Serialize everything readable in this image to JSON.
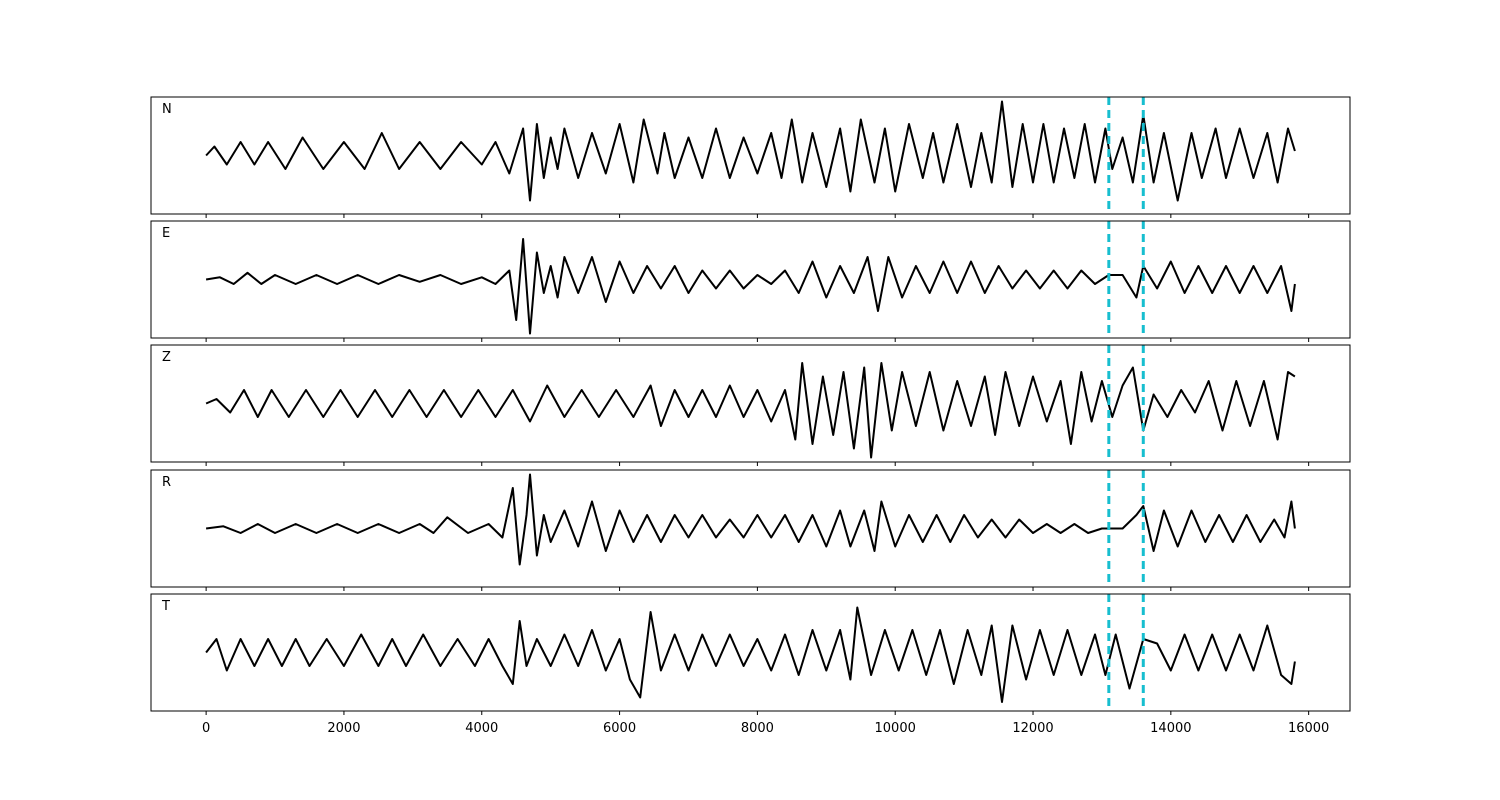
{
  "chart_data": {
    "type": "line",
    "title": "",
    "xlabel": "",
    "ylabel": "",
    "xlim": [
      -800,
      16600
    ],
    "x_ticks": [
      0,
      2000,
      4000,
      6000,
      8000,
      10000,
      12000,
      14000,
      16000
    ],
    "x_tick_labels": [
      "0",
      "2000",
      "4000",
      "6000",
      "8000",
      "10000",
      "12000",
      "14000",
      "16000"
    ],
    "y_ticks_visible": false,
    "grid": false,
    "trace_color": "#000000",
    "pick_color": "#17becf",
    "vertical_markers": [
      13100,
      13600
    ],
    "panels": [
      {
        "label": "N",
        "ylim": [
          -1.3,
          1.3
        ],
        "x": [
          0,
          120,
          300,
          500,
          700,
          900,
          1150,
          1400,
          1700,
          2000,
          2300,
          2550,
          2800,
          3100,
          3400,
          3700,
          4000,
          4200,
          4400,
          4500,
          4600,
          4700,
          4800,
          4900,
          5000,
          5100,
          5200,
          5400,
          5600,
          5800,
          6000,
          6200,
          6350,
          6550,
          6650,
          6800,
          7000,
          7200,
          7400,
          7600,
          7800,
          8000,
          8200,
          8350,
          8500,
          8650,
          8800,
          9000,
          9200,
          9350,
          9500,
          9700,
          9850,
          10000,
          10200,
          10400,
          10550,
          10700,
          10900,
          11100,
          11250,
          11400,
          11550,
          11700,
          11850,
          12000,
          12150,
          12300,
          12450,
          12600,
          12750,
          12900,
          13050,
          13150,
          13300,
          13450,
          13600,
          13750,
          13900,
          14100,
          14300,
          14450,
          14650,
          14800,
          15000,
          15200,
          15400,
          15550,
          15700,
          15800
        ],
        "y": [
          0.0,
          0.2,
          -0.2,
          0.3,
          -0.2,
          0.3,
          -0.3,
          0.4,
          -0.3,
          0.3,
          -0.3,
          0.5,
          -0.3,
          0.3,
          -0.3,
          0.3,
          -0.2,
          0.3,
          -0.4,
          0.1,
          0.6,
          -1.0,
          0.7,
          -0.5,
          0.4,
          -0.3,
          0.6,
          -0.5,
          0.5,
          -0.4,
          0.7,
          -0.6,
          0.8,
          -0.4,
          0.5,
          -0.5,
          0.4,
          -0.5,
          0.6,
          -0.5,
          0.4,
          -0.4,
          0.5,
          -0.5,
          0.8,
          -0.6,
          0.5,
          -0.7,
          0.6,
          -0.8,
          0.8,
          -0.6,
          0.6,
          -0.8,
          0.7,
          -0.5,
          0.5,
          -0.6,
          0.7,
          -0.7,
          0.5,
          -0.6,
          1.2,
          -0.7,
          0.7,
          -0.6,
          0.7,
          -0.6,
          0.6,
          -0.5,
          0.7,
          -0.6,
          0.6,
          -0.3,
          0.4,
          -0.6,
          0.9,
          -0.6,
          0.5,
          -1.0,
          0.5,
          -0.5,
          0.6,
          -0.5,
          0.6,
          -0.5,
          0.5,
          -0.6,
          0.6,
          0.1
        ]
      },
      {
        "label": "E",
        "ylim": [
          -1.3,
          1.3
        ],
        "x": [
          0,
          200,
          400,
          600,
          800,
          1000,
          1300,
          1600,
          1900,
          2200,
          2500,
          2800,
          3100,
          3400,
          3700,
          4000,
          4200,
          4400,
          4500,
          4600,
          4700,
          4800,
          4900,
          5000,
          5100,
          5200,
          5400,
          5600,
          5800,
          6000,
          6200,
          6400,
          6600,
          6800,
          7000,
          7200,
          7400,
          7600,
          7800,
          8000,
          8200,
          8400,
          8600,
          8800,
          9000,
          9200,
          9400,
          9600,
          9750,
          9900,
          10100,
          10300,
          10500,
          10700,
          10900,
          11100,
          11300,
          11500,
          11700,
          11900,
          12100,
          12300,
          12500,
          12700,
          12900,
          13100,
          13300,
          13500,
          13600,
          13800,
          14000,
          14200,
          14400,
          14600,
          14800,
          15000,
          15200,
          15400,
          15600,
          15750,
          15800
        ],
        "y": [
          0.0,
          0.05,
          -0.1,
          0.15,
          -0.1,
          0.1,
          -0.1,
          0.1,
          -0.1,
          0.1,
          -0.1,
          0.1,
          -0.05,
          0.1,
          -0.1,
          0.05,
          -0.1,
          0.2,
          -0.9,
          0.9,
          -1.2,
          0.6,
          -0.3,
          0.3,
          -0.4,
          0.5,
          -0.3,
          0.5,
          -0.5,
          0.4,
          -0.3,
          0.3,
          -0.2,
          0.3,
          -0.3,
          0.2,
          -0.2,
          0.2,
          -0.2,
          0.1,
          -0.1,
          0.2,
          -0.3,
          0.4,
          -0.4,
          0.3,
          -0.3,
          0.5,
          -0.7,
          0.5,
          -0.4,
          0.3,
          -0.3,
          0.4,
          -0.3,
          0.4,
          -0.3,
          0.3,
          -0.2,
          0.2,
          -0.2,
          0.2,
          -0.2,
          0.2,
          -0.1,
          0.1,
          0.1,
          -0.4,
          0.3,
          -0.2,
          0.4,
          -0.3,
          0.3,
          -0.3,
          0.3,
          -0.3,
          0.3,
          -0.3,
          0.3,
          -0.7,
          -0.1
        ]
      },
      {
        "label": "Z",
        "ylim": [
          -1.3,
          1.3
        ],
        "x": [
          0,
          150,
          350,
          550,
          750,
          950,
          1200,
          1450,
          1700,
          1950,
          2200,
          2450,
          2700,
          2950,
          3200,
          3450,
          3700,
          3950,
          4200,
          4450,
          4700,
          4950,
          5200,
          5450,
          5700,
          5950,
          6200,
          6450,
          6600,
          6800,
          7000,
          7200,
          7400,
          7600,
          7800,
          8000,
          8200,
          8400,
          8550,
          8650,
          8800,
          8950,
          9100,
          9250,
          9400,
          9550,
          9650,
          9800,
          9950,
          10100,
          10300,
          10500,
          10700,
          10900,
          11100,
          11300,
          11450,
          11600,
          11800,
          12000,
          12200,
          12400,
          12550,
          12700,
          12850,
          13000,
          13150,
          13300,
          13450,
          13600,
          13750,
          13950,
          14150,
          14350,
          14550,
          14750,
          14950,
          15150,
          15350,
          15550,
          15700,
          15800
        ],
        "y": [
          0.0,
          0.1,
          -0.2,
          0.3,
          -0.3,
          0.3,
          -0.3,
          0.3,
          -0.3,
          0.3,
          -0.3,
          0.3,
          -0.3,
          0.3,
          -0.3,
          0.3,
          -0.3,
          0.3,
          -0.3,
          0.3,
          -0.4,
          0.4,
          -0.3,
          0.3,
          -0.3,
          0.3,
          -0.3,
          0.4,
          -0.5,
          0.3,
          -0.3,
          0.3,
          -0.3,
          0.4,
          -0.3,
          0.3,
          -0.4,
          0.3,
          -0.8,
          0.9,
          -0.9,
          0.6,
          -0.7,
          0.7,
          -1.0,
          0.8,
          -1.2,
          0.9,
          -0.6,
          0.7,
          -0.5,
          0.7,
          -0.6,
          0.5,
          -0.5,
          0.6,
          -0.7,
          0.7,
          -0.5,
          0.6,
          -0.4,
          0.5,
          -0.9,
          0.7,
          -0.4,
          0.5,
          -0.3,
          0.4,
          0.8,
          -0.6,
          0.2,
          -0.3,
          0.3,
          -0.2,
          0.5,
          -0.6,
          0.5,
          -0.5,
          0.5,
          -0.8,
          0.7,
          0.6
        ]
      },
      {
        "label": "R",
        "ylim": [
          -1.3,
          1.3
        ],
        "x": [
          0,
          250,
          500,
          750,
          1000,
          1300,
          1600,
          1900,
          2200,
          2500,
          2800,
          3100,
          3300,
          3500,
          3800,
          4100,
          4300,
          4450,
          4550,
          4650,
          4700,
          4800,
          4900,
          5000,
          5200,
          5400,
          5600,
          5800,
          6000,
          6200,
          6400,
          6600,
          6800,
          7000,
          7200,
          7400,
          7600,
          7800,
          8000,
          8200,
          8400,
          8600,
          8800,
          9000,
          9200,
          9350,
          9550,
          9700,
          9800,
          10000,
          10200,
          10400,
          10600,
          10800,
          11000,
          11200,
          11400,
          11600,
          11800,
          12000,
          12200,
          12400,
          12600,
          12800,
          13000,
          13300,
          13500,
          13600,
          13750,
          13900,
          14100,
          14300,
          14500,
          14700,
          14900,
          15100,
          15300,
          15500,
          15650,
          15750,
          15800
        ],
        "y": [
          0.0,
          0.05,
          -0.1,
          0.1,
          -0.1,
          0.1,
          -0.1,
          0.1,
          -0.1,
          0.1,
          -0.1,
          0.1,
          -0.1,
          0.25,
          -0.1,
          0.1,
          -0.2,
          0.9,
          -0.8,
          0.3,
          1.2,
          -0.6,
          0.3,
          -0.3,
          0.4,
          -0.4,
          0.6,
          -0.5,
          0.4,
          -0.3,
          0.3,
          -0.3,
          0.3,
          -0.2,
          0.3,
          -0.2,
          0.2,
          -0.2,
          0.3,
          -0.2,
          0.3,
          -0.3,
          0.3,
          -0.4,
          0.4,
          -0.4,
          0.4,
          -0.5,
          0.6,
          -0.4,
          0.3,
          -0.3,
          0.3,
          -0.3,
          0.3,
          -0.2,
          0.2,
          -0.2,
          0.2,
          -0.1,
          0.1,
          -0.1,
          0.1,
          -0.1,
          0.0,
          0.0,
          0.3,
          0.5,
          -0.5,
          0.4,
          -0.4,
          0.4,
          -0.3,
          0.3,
          -0.3,
          0.3,
          -0.3,
          0.2,
          -0.2,
          0.6,
          0.0
        ]
      },
      {
        "label": "T",
        "ylim": [
          -1.3,
          1.3
        ],
        "x": [
          0,
          150,
          300,
          500,
          700,
          900,
          1100,
          1300,
          1500,
          1750,
          2000,
          2250,
          2500,
          2700,
          2900,
          3150,
          3400,
          3650,
          3900,
          4100,
          4300,
          4450,
          4550,
          4650,
          4800,
          5000,
          5200,
          5400,
          5600,
          5800,
          6000,
          6150,
          6300,
          6450,
          6600,
          6800,
          7000,
          7200,
          7400,
          7600,
          7800,
          8000,
          8200,
          8400,
          8600,
          8800,
          9000,
          9200,
          9350,
          9450,
          9650,
          9850,
          10050,
          10250,
          10450,
          10650,
          10850,
          11050,
          11250,
          11400,
          11550,
          11700,
          11900,
          12100,
          12300,
          12500,
          12700,
          12900,
          13050,
          13200,
          13400,
          13600,
          13800,
          14000,
          14200,
          14400,
          14600,
          14800,
          15000,
          15200,
          15400,
          15600,
          15750,
          15800
        ],
        "y": [
          0.0,
          0.3,
          -0.4,
          0.3,
          -0.3,
          0.3,
          -0.3,
          0.3,
          -0.3,
          0.3,
          -0.3,
          0.4,
          -0.3,
          0.3,
          -0.3,
          0.4,
          -0.3,
          0.3,
          -0.3,
          0.3,
          -0.3,
          -0.7,
          0.7,
          -0.3,
          0.3,
          -0.3,
          0.4,
          -0.3,
          0.5,
          -0.4,
          0.3,
          -0.6,
          -1.0,
          0.9,
          -0.4,
          0.4,
          -0.4,
          0.4,
          -0.3,
          0.4,
          -0.3,
          0.3,
          -0.4,
          0.4,
          -0.5,
          0.5,
          -0.4,
          0.5,
          -0.6,
          1.0,
          -0.5,
          0.5,
          -0.4,
          0.5,
          -0.5,
          0.5,
          -0.7,
          0.5,
          -0.5,
          0.6,
          -1.1,
          0.6,
          -0.6,
          0.5,
          -0.5,
          0.5,
          -0.5,
          0.4,
          -0.5,
          0.4,
          -0.8,
          0.3,
          0.2,
          -0.4,
          0.4,
          -0.4,
          0.4,
          -0.4,
          0.4,
          -0.4,
          0.6,
          -0.5,
          -0.7,
          -0.2
        ]
      }
    ]
  }
}
